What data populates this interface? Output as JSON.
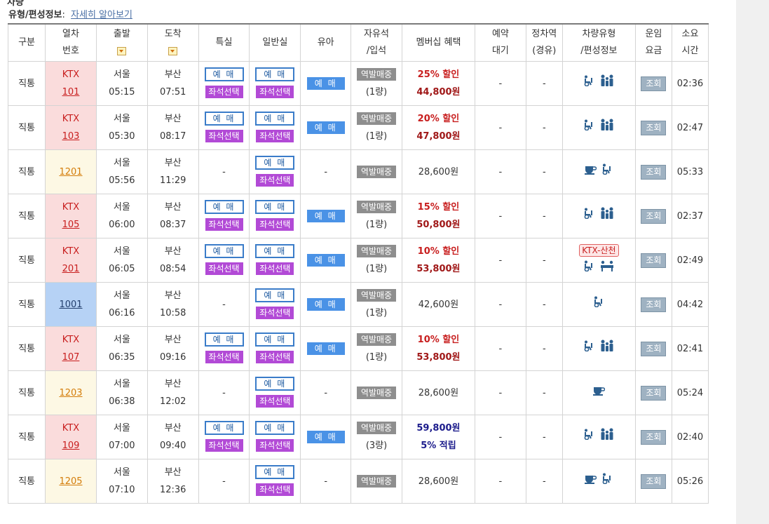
{
  "page": {
    "cut_heading": "차량",
    "info_label": "유형/편성정보",
    "info_sep": ":",
    "info_link": "자세히 알아보기"
  },
  "headers": {
    "type": [
      "구분"
    ],
    "train_no": [
      "열차",
      "번호"
    ],
    "depart": "출발",
    "arrive": "도착",
    "special": "특실",
    "general": "일반실",
    "child": "유아",
    "free": [
      "자유석",
      "/입석"
    ],
    "member": "멤버십 혜택",
    "waitlist": [
      "예약",
      "대기"
    ],
    "stopover": [
      "정차역",
      "(경유)"
    ],
    "vehicle": [
      "차량유형",
      "/편성정보"
    ],
    "fare": [
      "운임",
      "요금"
    ],
    "duration": [
      "소요",
      "시간"
    ]
  },
  "labels": {
    "reserve": "예 매",
    "seat_select": "좌석선택",
    "child_reserve": "예 매",
    "station_sale": "역발매중",
    "query": "조회",
    "dash": "-"
  },
  "icons": {
    "wheelchair": "wheelchair-icon",
    "family": "family-icon",
    "cafe": "cafe-icon",
    "seat_group": "group-seat-icon"
  },
  "colors": {
    "ktx_bg": "#fadcdc",
    "mugunghwa_bg": "#fdf8e4",
    "nuriro_bg": "#b6d2f5",
    "seat_btn": "#b24ad6",
    "child_btn": "#4a92e6",
    "station_btn": "#8e8e8e",
    "icon_blue": "#2c5f8f"
  },
  "rows": [
    {
      "kind": "직통",
      "name": "KTX",
      "no": "101",
      "from": "서울",
      "dep": "05:15",
      "to": "부산",
      "arr": "07:51",
      "special": true,
      "general": true,
      "child": true,
      "free_cars": "(1량)",
      "benefit1": "25% 할인",
      "benefit2": "44,800원",
      "benefit_type": "disc",
      "icons": [
        "wheelchair",
        "family"
      ],
      "badge": "",
      "dur": "02:36",
      "style": "ktx"
    },
    {
      "kind": "직통",
      "name": "KTX",
      "no": "103",
      "from": "서울",
      "dep": "05:30",
      "to": "부산",
      "arr": "08:17",
      "special": true,
      "general": true,
      "child": true,
      "free_cars": "(1량)",
      "benefit1": "20% 할인",
      "benefit2": "47,800원",
      "benefit_type": "disc",
      "icons": [
        "wheelchair",
        "family"
      ],
      "badge": "",
      "dur": "02:47",
      "style": "ktx"
    },
    {
      "kind": "직통",
      "name": "",
      "no": "1201",
      "from": "서울",
      "dep": "05:56",
      "to": "부산",
      "arr": "11:29",
      "special": false,
      "general": true,
      "child": false,
      "free_cars": "",
      "benefit1": "28,600원",
      "benefit2": "",
      "benefit_type": "plain",
      "icons": [
        "cafe",
        "wheelchair"
      ],
      "badge": "",
      "dur": "05:33",
      "style": "mugung"
    },
    {
      "kind": "직통",
      "name": "KTX",
      "no": "105",
      "from": "서울",
      "dep": "06:00",
      "to": "부산",
      "arr": "08:37",
      "special": true,
      "general": true,
      "child": true,
      "free_cars": "(1량)",
      "benefit1": "15% 할인",
      "benefit2": "50,800원",
      "benefit_type": "disc",
      "icons": [
        "wheelchair",
        "family"
      ],
      "badge": "",
      "dur": "02:37",
      "style": "ktx"
    },
    {
      "kind": "직통",
      "name": "KTX",
      "no": "201",
      "from": "서울",
      "dep": "06:05",
      "to": "부산",
      "arr": "08:54",
      "special": true,
      "general": true,
      "child": true,
      "free_cars": "(1량)",
      "benefit1": "10% 할인",
      "benefit2": "53,800원",
      "benefit_type": "disc",
      "icons": [
        "wheelchair",
        "seat_group"
      ],
      "badge": "KTX-산천",
      "dur": "02:49",
      "style": "ktx"
    },
    {
      "kind": "직통",
      "name": "",
      "no": "1001",
      "from": "서울",
      "dep": "06:16",
      "to": "부산",
      "arr": "10:58",
      "special": false,
      "general": true,
      "child": true,
      "free_cars": "(1량)",
      "benefit1": "42,600원",
      "benefit2": "",
      "benefit_type": "plain",
      "icons": [
        "wheelchair"
      ],
      "badge": "",
      "dur": "04:42",
      "style": "nuri"
    },
    {
      "kind": "직통",
      "name": "KTX",
      "no": "107",
      "from": "서울",
      "dep": "06:35",
      "to": "부산",
      "arr": "09:16",
      "special": true,
      "general": true,
      "child": true,
      "free_cars": "(1량)",
      "benefit1": "10% 할인",
      "benefit2": "53,800원",
      "benefit_type": "disc",
      "icons": [
        "wheelchair",
        "family"
      ],
      "badge": "",
      "dur": "02:41",
      "style": "ktx"
    },
    {
      "kind": "직통",
      "name": "",
      "no": "1203",
      "from": "서울",
      "dep": "06:38",
      "to": "부산",
      "arr": "12:02",
      "special": false,
      "general": true,
      "child": false,
      "free_cars": "",
      "benefit1": "28,600원",
      "benefit2": "",
      "benefit_type": "plain",
      "icons": [
        "cafe"
      ],
      "badge": "",
      "dur": "05:24",
      "style": "mugung"
    },
    {
      "kind": "직통",
      "name": "KTX",
      "no": "109",
      "from": "서울",
      "dep": "07:00",
      "to": "부산",
      "arr": "09:40",
      "special": true,
      "general": true,
      "child": true,
      "free_cars": "(3량)",
      "benefit1": "59,800원",
      "benefit2": "5% 적립",
      "benefit_type": "points",
      "icons": [
        "wheelchair",
        "family"
      ],
      "badge": "",
      "dur": "02:40",
      "style": "ktx"
    },
    {
      "kind": "직통",
      "name": "",
      "no": "1205",
      "from": "서울",
      "dep": "07:10",
      "to": "부산",
      "arr": "12:36",
      "special": false,
      "general": true,
      "child": false,
      "free_cars": "",
      "benefit1": "28,600원",
      "benefit2": "",
      "benefit_type": "plain",
      "icons": [
        "cafe",
        "wheelchair"
      ],
      "badge": "",
      "dur": "05:26",
      "style": "mugung"
    }
  ]
}
